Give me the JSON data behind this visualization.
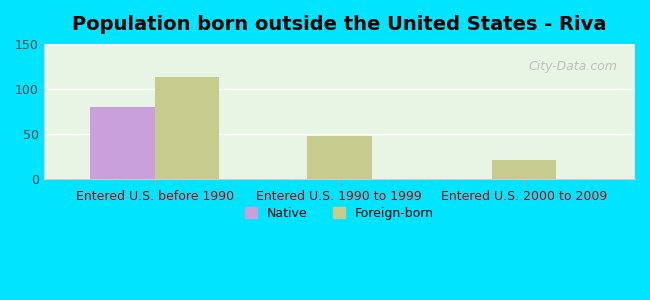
{
  "title": "Population born outside the United States - Riva",
  "groups": [
    "Entered U.S. before 1990",
    "Entered U.S. 1990 to 1999",
    "Entered U.S. 2000 to 2009"
  ],
  "native_values": [
    80,
    0,
    0
  ],
  "foreign_values": [
    113,
    48,
    22
  ],
  "native_color": "#c9a0dc",
  "foreign_color": "#c5cc8e",
  "ylim": [
    0,
    150
  ],
  "yticks": [
    0,
    50,
    100,
    150
  ],
  "bar_width": 0.35,
  "bg_outer": "#00e5ff",
  "xlabel_color": "#cc0000",
  "title_fontsize": 14,
  "tick_fontsize": 9,
  "legend_native_label": "Native",
  "legend_foreign_label": "Foreign-born",
  "watermark": "City-Data.com"
}
